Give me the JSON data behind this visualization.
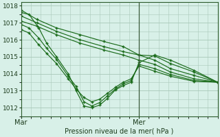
{
  "bg_color": "#c8e8d8",
  "plot_bg": "#d8f0e8",
  "grid_color": "#a8c8b8",
  "line_color": "#1a6b1a",
  "xlabel": "Pression niveau de la mer( hPa )",
  "ylim": [
    1011.5,
    1018.2
  ],
  "yticks": [
    1012,
    1013,
    1014,
    1015,
    1016,
    1017,
    1018
  ],
  "vline_x": 0.6,
  "series": [
    [
      0.0,
      1017.75,
      0.08,
      1017.2,
      0.18,
      1016.7,
      0.3,
      1016.3,
      0.42,
      1015.9,
      0.52,
      1015.6,
      0.6,
      1015.1,
      0.68,
      1015.05,
      0.76,
      1014.6,
      0.88,
      1014.1,
      1.0,
      1013.5
    ],
    [
      0.0,
      1017.4,
      0.08,
      1017.0,
      0.18,
      1016.5,
      0.3,
      1016.0,
      0.42,
      1015.6,
      0.52,
      1015.3,
      0.6,
      1015.1,
      0.68,
      1014.8,
      0.76,
      1014.3,
      0.88,
      1013.9,
      1.0,
      1013.5
    ],
    [
      0.0,
      1017.1,
      0.08,
      1016.8,
      0.18,
      1016.3,
      0.3,
      1015.8,
      0.42,
      1015.4,
      0.52,
      1015.1,
      0.6,
      1014.8,
      0.68,
      1014.55,
      0.76,
      1014.1,
      0.88,
      1013.7,
      1.0,
      1013.5
    ],
    [
      0.0,
      1017.6,
      0.04,
      1017.5,
      0.09,
      1016.7,
      0.13,
      1015.8,
      0.18,
      1015.0,
      0.24,
      1014.0,
      0.28,
      1013.0,
      0.32,
      1012.1,
      0.36,
      1012.0,
      0.4,
      1012.15,
      0.44,
      1012.55,
      0.48,
      1013.05,
      0.52,
      1013.3,
      0.56,
      1013.5,
      0.6,
      1014.65,
      0.68,
      1015.1,
      0.76,
      1014.8,
      0.88,
      1014.2,
      1.0,
      1013.5
    ],
    [
      0.0,
      1016.6,
      0.04,
      1016.4,
      0.09,
      1015.7,
      0.13,
      1015.2,
      0.18,
      1014.6,
      0.24,
      1013.7,
      0.28,
      1013.1,
      0.32,
      1012.6,
      0.36,
      1012.35,
      0.4,
      1012.5,
      0.44,
      1012.85,
      0.48,
      1013.2,
      0.52,
      1013.5,
      0.56,
      1013.7,
      0.6,
      1014.45,
      0.68,
      1014.15,
      0.76,
      1013.85,
      0.88,
      1013.55,
      1.0,
      1013.5
    ],
    [
      0.0,
      1016.9,
      0.04,
      1016.7,
      0.09,
      1016.1,
      0.13,
      1015.5,
      0.18,
      1014.85,
      0.24,
      1013.85,
      0.28,
      1013.25,
      0.32,
      1012.35,
      0.36,
      1012.1,
      0.4,
      1012.3,
      0.44,
      1012.7,
      0.48,
      1013.1,
      0.52,
      1013.4,
      0.56,
      1013.6,
      0.6,
      1014.55,
      0.68,
      1014.3,
      0.76,
      1013.95,
      0.88,
      1013.6,
      1.0,
      1013.5
    ]
  ],
  "xtick_positions": [
    0.0,
    0.6
  ],
  "xtick_labels": [
    "Mar",
    "Mer"
  ]
}
